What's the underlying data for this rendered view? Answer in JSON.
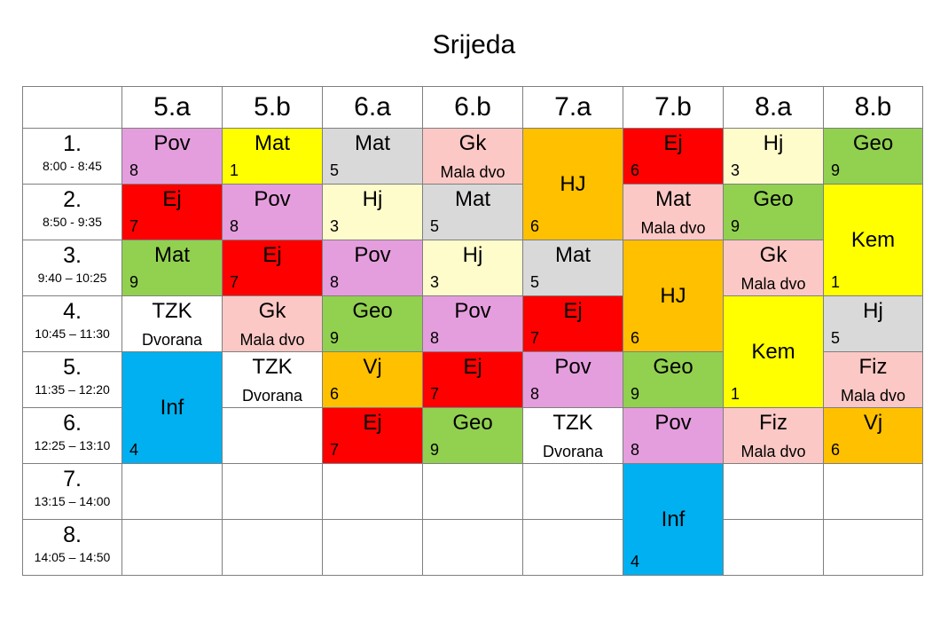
{
  "title": "Srijeda",
  "columns": [
    "5.a",
    "5.b",
    "6.a",
    "6.b",
    "7.a",
    "7.b",
    "8.a",
    "8.b"
  ],
  "periods": [
    {
      "num": "1.",
      "time": "8:00 - 8:45"
    },
    {
      "num": "2.",
      "time": "8:50 - 9:35"
    },
    {
      "num": "3.",
      "time": "9:40 – 10:25"
    },
    {
      "num": "4.",
      "time": "10:45 – 11:30"
    },
    {
      "num": "5.",
      "time": "11:35 – 12:20"
    },
    {
      "num": "6.",
      "time": "12:25 – 13:10"
    },
    {
      "num": "7.",
      "time": "13:15 – 14:00"
    },
    {
      "num": "8.",
      "time": "14:05 – 14:50"
    }
  ],
  "cells": {
    "r1": [
      {
        "subj": "Pov",
        "room": "8"
      },
      {
        "subj": "Mat",
        "room": "1"
      },
      {
        "subj": "Mat",
        "room": "5"
      },
      {
        "subj": "Gk",
        "note": "Mala dvo"
      },
      {
        "subj": "HJ",
        "room": "6"
      },
      {
        "subj": "Ej",
        "room": "6"
      },
      {
        "subj": "Hj",
        "room": "3"
      },
      {
        "subj": "Geo",
        "room": "9"
      }
    ],
    "r2": [
      {
        "subj": "Ej",
        "room": "7"
      },
      {
        "subj": "Pov",
        "room": "8"
      },
      {
        "subj": "Hj",
        "room": "3"
      },
      {
        "subj": "Mat",
        "room": "5"
      },
      {
        "subj": "Mat",
        "note": "Mala dvo"
      },
      {
        "subj": "Geo",
        "room": "9"
      },
      {
        "subj": "Kem",
        "room": "1"
      }
    ],
    "r3": [
      {
        "subj": "Mat",
        "room": "9"
      },
      {
        "subj": "Ej",
        "room": "7"
      },
      {
        "subj": "Pov",
        "room": "8"
      },
      {
        "subj": "Hj",
        "room": "3"
      },
      {
        "subj": "Mat",
        "room": "5"
      },
      {
        "subj": "HJ",
        "room": "6"
      },
      {
        "subj": "Gk",
        "note": "Mala dvo"
      }
    ],
    "r4": [
      {
        "subj": "TZK",
        "note": "Dvorana"
      },
      {
        "subj": "Gk",
        "note": "Mala dvo"
      },
      {
        "subj": "Geo",
        "room": "9"
      },
      {
        "subj": "Pov",
        "room": "8"
      },
      {
        "subj": "Ej",
        "room": "7"
      },
      {
        "subj": "Kem",
        "room": "1"
      },
      {
        "subj": "Hj",
        "room": "5"
      }
    ],
    "r5": [
      {
        "subj": "Inf",
        "room": "4"
      },
      {
        "subj": "TZK",
        "note": "Dvorana"
      },
      {
        "subj": "Vj",
        "room": "6"
      },
      {
        "subj": "Ej",
        "room": "7"
      },
      {
        "subj": "Pov",
        "room": "8"
      },
      {
        "subj": "Geo",
        "room": "9"
      },
      {
        "subj": "Fiz",
        "note": "Mala dvo"
      }
    ],
    "r6": [
      {
        "subj": "Ej",
        "room": "7"
      },
      {
        "subj": "Geo",
        "room": "9"
      },
      {
        "subj": "TZK",
        "note": "Dvorana"
      },
      {
        "subj": "Pov",
        "room": "8"
      },
      {
        "subj": "Fiz",
        "note": "Mala dvo"
      },
      {
        "subj": "Vj",
        "room": "6"
      }
    ],
    "r7": [
      {
        "subj": "Inf",
        "room": "4"
      }
    ]
  },
  "colors": {
    "pov": "#e59edd",
    "mat_yellow": "#ffff00",
    "mat_grey": "#d9d9d9",
    "gk": "#fbc8c5",
    "hj_orange": "#ffc000",
    "ej": "#ff0000",
    "hj_light": "#fffccc",
    "geo": "#92d050",
    "inf": "#00b0f0"
  }
}
